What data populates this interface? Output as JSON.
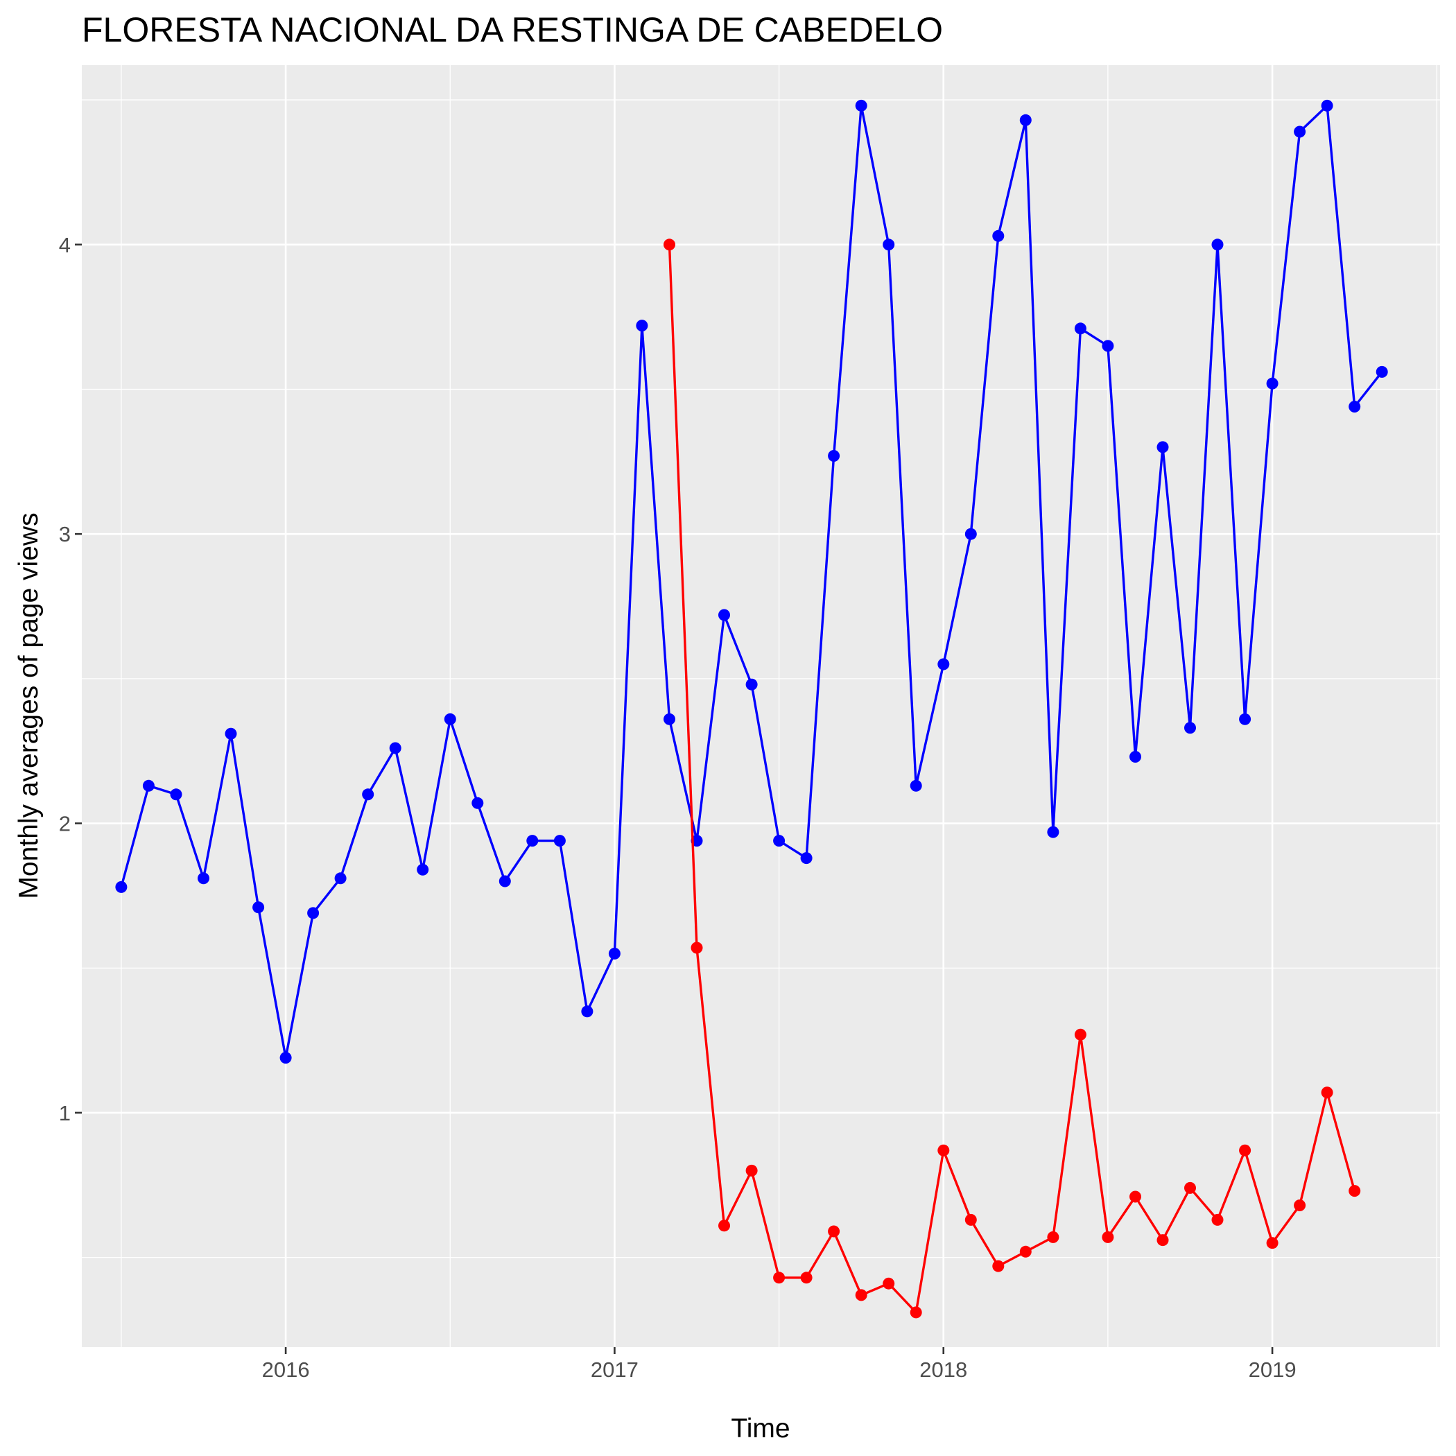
{
  "chart_data": {
    "type": "line",
    "title": "FLORESTA NACIONAL DA RESTINGA DE CABEDELO",
    "xlabel": "Time",
    "ylabel": "Monthly averages of page views",
    "x_ticks": [
      2016,
      2017,
      2018,
      2019
    ],
    "y_ticks": [
      1,
      2,
      3,
      4
    ],
    "xlim": [
      2015.38,
      2019.51
    ],
    "ylim": [
      0.19,
      4.62
    ],
    "grid": true,
    "legend": "none",
    "series": [
      {
        "color": "#0000ff",
        "x": [
          "2015-07",
          "2015-08",
          "2015-09",
          "2015-10",
          "2015-11",
          "2015-12",
          "2016-01",
          "2016-02",
          "2016-03",
          "2016-04",
          "2016-05",
          "2016-06",
          "2016-07",
          "2016-08",
          "2016-09",
          "2016-10",
          "2016-11",
          "2016-12",
          "2017-01",
          "2017-02",
          "2017-03",
          "2017-04",
          "2017-05",
          "2017-06",
          "2017-07",
          "2017-08",
          "2017-09",
          "2017-10",
          "2017-11",
          "2017-12",
          "2018-01",
          "2018-02",
          "2018-03",
          "2018-04",
          "2018-05",
          "2018-06",
          "2018-07",
          "2018-08",
          "2018-09",
          "2018-10",
          "2018-11",
          "2018-12",
          "2019-01",
          "2019-02",
          "2019-03",
          "2019-04",
          "2019-05"
        ],
        "values": [
          1.78,
          2.13,
          2.1,
          1.81,
          2.31,
          1.71,
          1.19,
          1.69,
          1.81,
          2.1,
          2.26,
          1.84,
          2.36,
          2.07,
          1.8,
          1.94,
          1.94,
          1.35,
          1.55,
          3.72,
          2.36,
          1.94,
          2.72,
          2.48,
          1.94,
          1.88,
          3.27,
          4.48,
          4.0,
          2.13,
          2.55,
          3.0,
          4.03,
          4.43,
          1.97,
          3.71,
          3.65,
          2.23,
          3.3,
          2.33,
          4.0,
          2.36,
          3.52,
          4.39,
          4.48,
          3.44,
          3.56
        ]
      },
      {
        "color": "#ff0000",
        "x": [
          "2017-03",
          "2017-04",
          "2017-05",
          "2017-06",
          "2017-07",
          "2017-08",
          "2017-09",
          "2017-10",
          "2017-11",
          "2017-12",
          "2018-01",
          "2018-02",
          "2018-03",
          "2018-04",
          "2018-05",
          "2018-06",
          "2018-07",
          "2018-08",
          "2018-09",
          "2018-10",
          "2018-11",
          "2018-12",
          "2019-01",
          "2019-02",
          "2019-03",
          "2019-04"
        ],
        "values": [
          4.0,
          1.57,
          0.61,
          0.8,
          0.43,
          0.43,
          0.59,
          0.37,
          0.41,
          0.31,
          0.87,
          0.63,
          0.47,
          0.52,
          0.57,
          1.27,
          0.57,
          0.71,
          0.56,
          0.74,
          0.63,
          0.87,
          0.55,
          0.68,
          1.07,
          0.73
        ]
      }
    ]
  }
}
